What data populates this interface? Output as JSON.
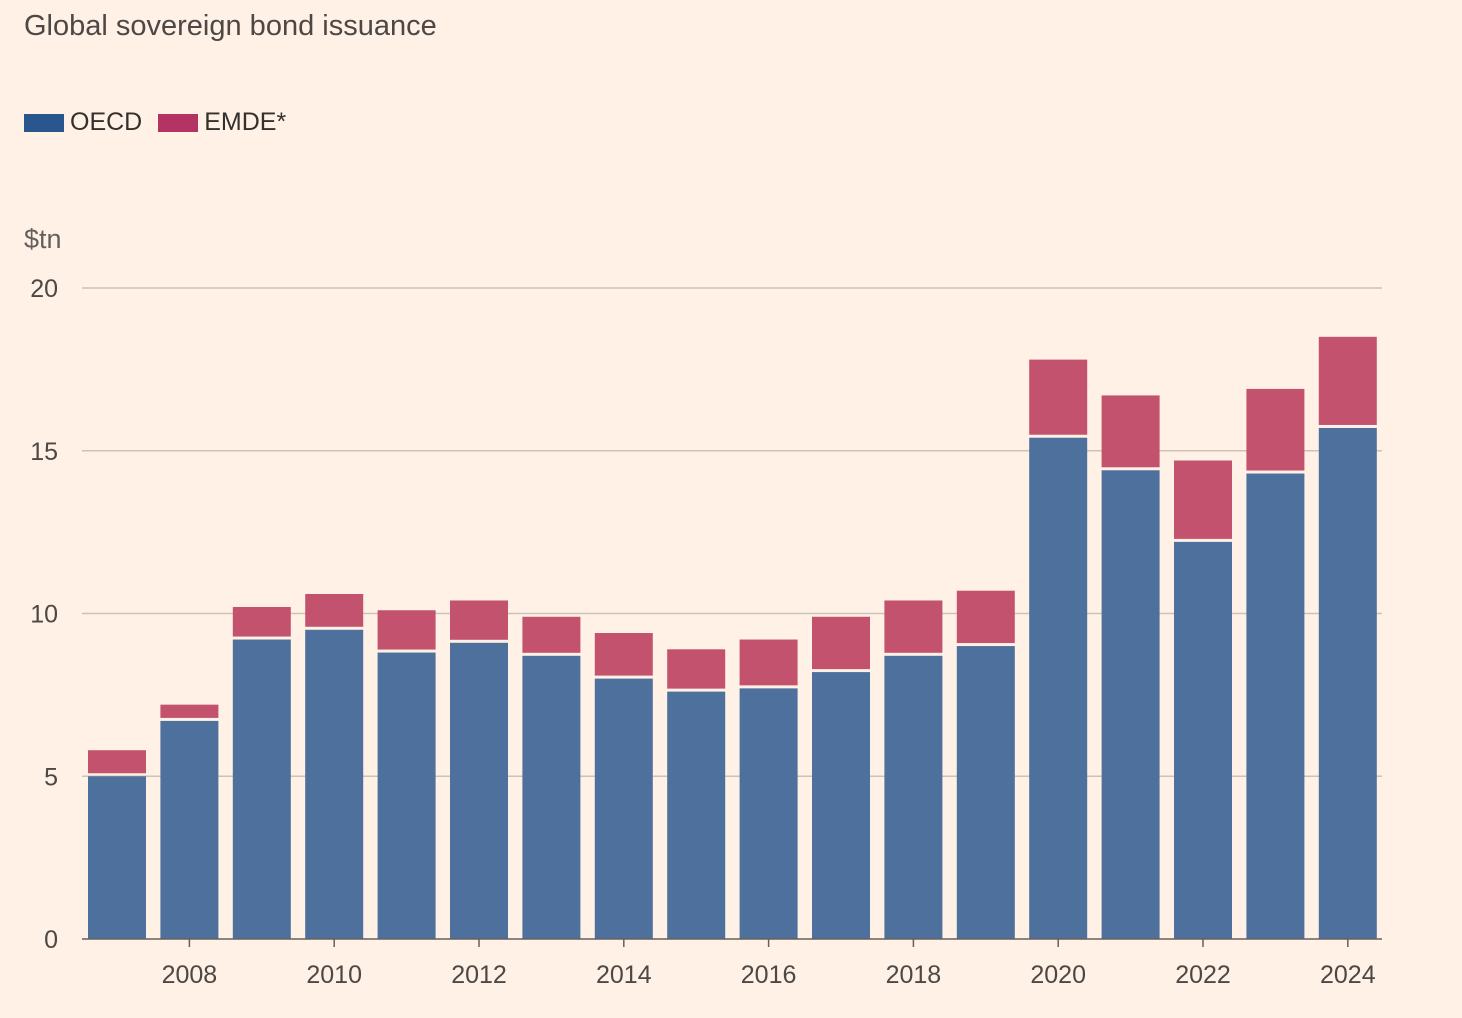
{
  "chart_data": {
    "type": "bar",
    "stacked": true,
    "title": "Global sovereign bond issuance",
    "unit_label": "$tn",
    "ylim": [
      0,
      20
    ],
    "yticks": [
      0,
      5,
      10,
      15,
      20
    ],
    "categories": [
      2007,
      2008,
      2009,
      2010,
      2011,
      2012,
      2013,
      2014,
      2015,
      2016,
      2017,
      2018,
      2019,
      2020,
      2021,
      2022,
      2023,
      2024
    ],
    "xtick_labels": [
      "2008",
      "2010",
      "2012",
      "2014",
      "2016",
      "2018",
      "2020",
      "2022",
      "2024"
    ],
    "series": [
      {
        "name": "OECD",
        "color": "#4D719C",
        "legend_color": "#2A568E",
        "values": [
          5.0,
          6.7,
          9.2,
          9.5,
          8.8,
          9.1,
          8.7,
          8.0,
          7.6,
          7.7,
          8.2,
          8.7,
          9.0,
          15.4,
          14.4,
          12.2,
          14.3,
          15.7
        ]
      },
      {
        "name": "EMDE*",
        "color": "#C3526E",
        "legend_color": "#B33463",
        "values": [
          0.8,
          0.5,
          1.0,
          1.1,
          1.3,
          1.3,
          1.2,
          1.4,
          1.3,
          1.5,
          1.7,
          1.7,
          1.7,
          2.4,
          2.3,
          2.5,
          2.6,
          2.8
        ]
      }
    ],
    "grid": true,
    "legend_position": "top-left"
  }
}
